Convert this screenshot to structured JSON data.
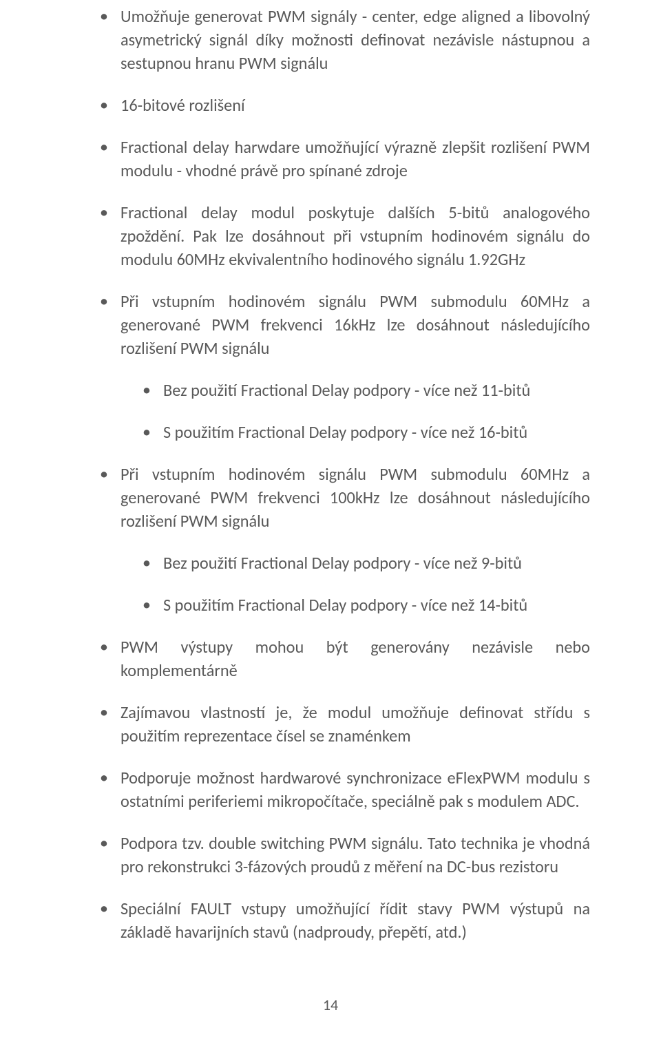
{
  "text_color": "#595959",
  "background_color": "#ffffff",
  "font_family": "Calibri",
  "font_size_pt": 18,
  "page_number": "14",
  "bullets": [
    {
      "text": "Umožňuje generovat PWM signály - center, edge aligned a libovolný asymetrický signál díky možnosti definovat nezávisle nástupnou a sestupnou hranu PWM signálu"
    },
    {
      "text": "16-bitové rozlišení"
    },
    {
      "text": "Fractional delay harwdare umožňující výrazně zlepšit rozlišení PWM modulu - vhodné právě pro spínané zdroje"
    },
    {
      "text": "Fractional delay modul poskytuje dalších 5-bitů analogového zpoždění. Pak lze dosáhnout při vstupním hodinovém signálu do modulu 60MHz ekvivalentního hodinového signálu 1.92GHz"
    },
    {
      "text": "Při vstupním hodinovém signálu PWM submodulu 60MHz a generované PWM frekvenci 16kHz lze dosáhnout následujícího rozlišení PWM signálu",
      "children": [
        {
          "text": "Bez použití Fractional Delay podpory - více než 11-bitů"
        },
        {
          "text": "S použitím Fractional Delay podpory - více než 16-bitů"
        }
      ]
    },
    {
      "text": "Při vstupním hodinovém signálu PWM submodulu 60MHz a generované PWM frekvenci 100kHz lze dosáhnout následujícího rozlišení PWM signálu",
      "children": [
        {
          "text": "Bez použití Fractional Delay podpory - více než 9-bitů"
        },
        {
          "text": "S použitím Fractional Delay podpory - více než 14-bitů"
        }
      ]
    },
    {
      "text": "PWM výstupy mohou být generovány nezávisle nebo komplementárně"
    },
    {
      "text": "Zajímavou vlastností je, že modul umožňuje definovat střídu s použitím reprezentace čísel se znaménkem"
    },
    {
      "text": "Podporuje možnost hardwarové synchronizace eFlexPWM modulu s ostatními periferiemi mikropočítače, speciálně pak s modulem ADC."
    },
    {
      "text": "Podpora tzv. double switching PWM signálu. Tato technika je vhodná pro rekonstrukci 3-fázových proudů z měření na DC-bus rezistoru"
    },
    {
      "text": "Speciální FAULT vstupy umožňující řídit stavy PWM výstupů na základě havarijních stavů (nadproudy, přepětí, atd.)"
    }
  ]
}
